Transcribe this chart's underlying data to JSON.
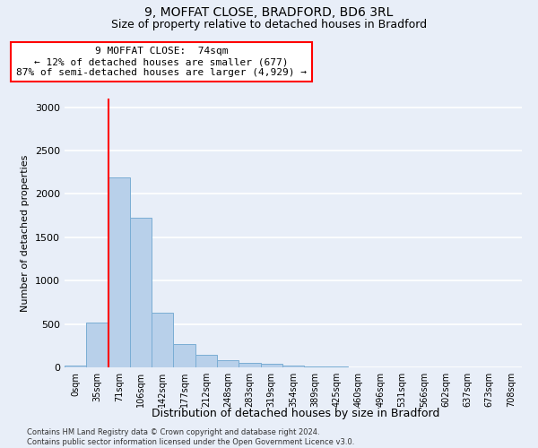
{
  "title1": "9, MOFFAT CLOSE, BRADFORD, BD6 3RL",
  "title2": "Size of property relative to detached houses in Bradford",
  "xlabel": "Distribution of detached houses by size in Bradford",
  "ylabel": "Number of detached properties",
  "footnote": "Contains HM Land Registry data © Crown copyright and database right 2024.\nContains public sector information licensed under the Open Government Licence v3.0.",
  "annotation_line1": "9 MOFFAT CLOSE:  74sqm",
  "annotation_line2": "← 12% of detached houses are smaller (677)",
  "annotation_line3": "87% of semi-detached houses are larger (4,929) →",
  "bar_labels": [
    "0sqm",
    "35sqm",
    "71sqm",
    "106sqm",
    "142sqm",
    "177sqm",
    "212sqm",
    "248sqm",
    "283sqm",
    "319sqm",
    "354sqm",
    "389sqm",
    "425sqm",
    "460sqm",
    "496sqm",
    "531sqm",
    "566sqm",
    "602sqm",
    "637sqm",
    "673sqm",
    "708sqm"
  ],
  "bar_values": [
    25,
    520,
    2190,
    1730,
    630,
    270,
    140,
    80,
    50,
    40,
    20,
    15,
    10,
    5,
    5,
    3,
    2,
    2,
    2,
    2,
    2
  ],
  "bar_color": "#b8d0ea",
  "bar_edge_color": "#7aadd4",
  "ylim": [
    0,
    3100
  ],
  "yticks": [
    0,
    500,
    1000,
    1500,
    2000,
    2500,
    3000
  ],
  "red_line_bar_index": 2,
  "background_color": "#e8eef8",
  "grid_color": "#ffffff"
}
